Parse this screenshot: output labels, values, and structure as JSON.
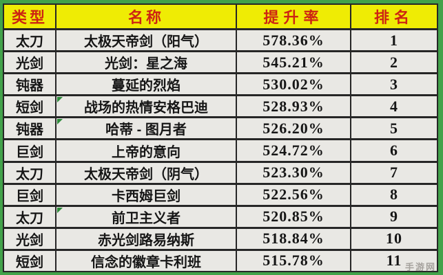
{
  "chart_data": {
    "type": "table",
    "title": "",
    "columns": [
      "类型",
      "名称",
      "提升率",
      "排名"
    ],
    "rows": [
      [
        "太刀",
        "太极天帝剑（阳气）",
        "578.36%",
        "1"
      ],
      [
        "光剑",
        "光剑：星之海",
        "545.21%",
        "2"
      ],
      [
        "钝器",
        "蔓延的烈焰",
        "530.02%",
        "3"
      ],
      [
        "短剑",
        "战场的热情安格巴迪",
        "528.93%",
        "4"
      ],
      [
        "钝器",
        "哈蒂 - 图月者",
        "526.20%",
        "5"
      ],
      [
        "巨剑",
        "上帝的意向",
        "524.72%",
        "6"
      ],
      [
        "太刀",
        "太极天帝剑（阴气）",
        "523.30%",
        "7"
      ],
      [
        "巨剑",
        "卡西姆巨剑",
        "522.56%",
        "8"
      ],
      [
        "太刀",
        "前卫主义者",
        "520.85%",
        "9"
      ],
      [
        "光剑",
        "赤光剑路易纳斯",
        "518.84%",
        "10"
      ],
      [
        "短剑",
        "信念的徽章卡利班",
        "515.78%",
        "11"
      ]
    ],
    "corner_marker_rows": [
      3,
      4,
      8
    ]
  },
  "watermark": "手游网",
  "colors": {
    "frame_green": "#42a24a",
    "header_yellow": "#efec04",
    "header_red": "#cd2413",
    "cell_bg": "#e9e8e4",
    "gridline": "#262626",
    "corner_marker_green": "#2e8b3a"
  }
}
